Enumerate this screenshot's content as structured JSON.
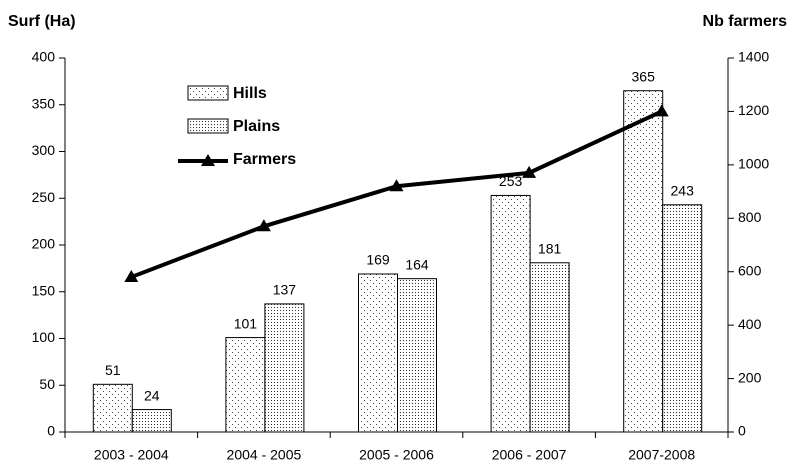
{
  "chart_data": {
    "type": "bar",
    "y_label": "Surf (Ha)",
    "y2_label": "Nb farmers",
    "categories": [
      "2003 - 2004",
      "2004 - 2005",
      "2005 - 2006",
      "2006 - 2007",
      "2007-2008"
    ],
    "series": [
      {
        "name": "Hills",
        "type": "bar",
        "color": "#444444",
        "values": [
          51,
          101,
          169,
          253,
          365
        ]
      },
      {
        "name": "Plains",
        "type": "bar",
        "color": "#333333",
        "values": [
          24,
          137,
          164,
          181,
          243
        ]
      },
      {
        "name": "Farmers",
        "type": "line",
        "axis": "y2",
        "color": "#000000",
        "values": [
          580,
          770,
          920,
          970,
          1200
        ]
      }
    ],
    "ylim": [
      0,
      400
    ],
    "yticks": [
      0,
      50,
      100,
      150,
      200,
      250,
      300,
      350,
      400
    ],
    "y2lim": [
      0,
      1400
    ],
    "y2ticks": [
      0,
      200,
      400,
      600,
      800,
      1000,
      1200,
      1400
    ],
    "grid": false,
    "legend": "upper left",
    "data_labels": true
  }
}
